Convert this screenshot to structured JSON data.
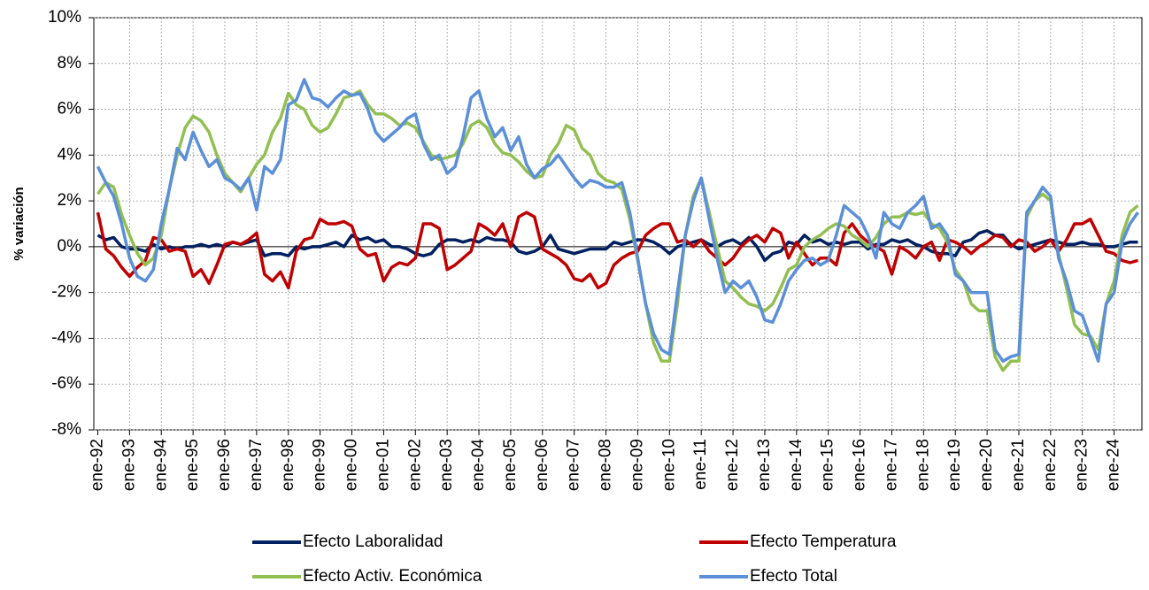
{
  "chart_data": {
    "type": "line",
    "y_label": "% variación",
    "categories": [
      "ene-92",
      null,
      null,
      null,
      "ene-93",
      null,
      null,
      null,
      "ene-94",
      null,
      null,
      null,
      "ene-95",
      null,
      null,
      null,
      "ene-96",
      null,
      null,
      null,
      "ene-97",
      null,
      null,
      null,
      "ene-98",
      null,
      null,
      null,
      "ene-99",
      null,
      null,
      null,
      "ene-00",
      null,
      null,
      null,
      "ene-01",
      null,
      null,
      null,
      "ene-02",
      null,
      null,
      null,
      "ene-03",
      null,
      null,
      null,
      "ene-04",
      null,
      null,
      null,
      "ene-05",
      null,
      null,
      null,
      "ene-06",
      null,
      null,
      null,
      "ene-07",
      null,
      null,
      null,
      "ene-08",
      null,
      null,
      null,
      "ene-09",
      null,
      null,
      null,
      "ene-10",
      null,
      null,
      null,
      "ene-11",
      null,
      null,
      null,
      "ene-12",
      null,
      null,
      null,
      "ene-13",
      null,
      null,
      null,
      "ene-14",
      null,
      null,
      null,
      "ene-15",
      null,
      null,
      null,
      "ene-16",
      null,
      null,
      null,
      "ene-17",
      null,
      null,
      null,
      "ene-18",
      null,
      null,
      null,
      "ene-19",
      null,
      null,
      null,
      "ene-20",
      null,
      null,
      null,
      "ene-21",
      null,
      null,
      null,
      "ene-22",
      null,
      null,
      null,
      "ene-23",
      null,
      null,
      null,
      "ene-24",
      null,
      null,
      null
    ],
    "series": [
      {
        "name": "Efecto Laboralidad",
        "color": "#002060",
        "values": [
          0.5,
          0.3,
          0.4,
          0.0,
          -0.1,
          -0.1,
          -0.2,
          0.1,
          -0.1,
          0.0,
          -0.1,
          0.0,
          0.0,
          0.1,
          0.0,
          0.1,
          0.0,
          0.2,
          0.1,
          0.2,
          0.3,
          -0.4,
          -0.3,
          -0.3,
          -0.4,
          0.0,
          -0.1,
          0.0,
          0.0,
          0.1,
          0.2,
          0.0,
          0.5,
          0.3,
          0.4,
          0.2,
          0.3,
          0.0,
          0.0,
          -0.1,
          -0.3,
          -0.4,
          -0.3,
          0.1,
          0.3,
          0.3,
          0.2,
          0.3,
          0.2,
          0.4,
          0.3,
          0.3,
          0.2,
          -0.2,
          -0.3,
          -0.2,
          0.0,
          0.5,
          -0.1,
          -0.2,
          -0.3,
          -0.2,
          -0.1,
          -0.1,
          -0.1,
          0.2,
          0.1,
          0.2,
          0.3,
          0.3,
          0.2,
          0.0,
          -0.3,
          0.0,
          0.1,
          0.2,
          0.3,
          0.1,
          0.0,
          0.2,
          0.3,
          0.1,
          0.4,
          0.0,
          -0.6,
          -0.3,
          -0.2,
          0.2,
          0.1,
          0.5,
          0.2,
          0.3,
          0.1,
          0.2,
          0.1,
          0.2,
          0.2,
          -0.1,
          0.1,
          0.1,
          0.3,
          0.2,
          0.3,
          0.1,
          0.0,
          -0.2,
          -0.3,
          -0.3,
          -0.4,
          0.2,
          0.3,
          0.6,
          0.7,
          0.5,
          0.5,
          0.1,
          -0.1,
          0.0,
          0.1,
          0.2,
          0.3,
          0.2,
          0.1,
          0.1,
          0.2,
          0.1,
          0.1,
          0.0,
          0.0,
          0.1,
          0.2,
          0.2
        ]
      },
      {
        "name": "Efecto Temperatura",
        "color": "#c00000",
        "values": [
          1.5,
          -0.1,
          -0.4,
          -0.9,
          -1.3,
          -0.9,
          -0.6,
          0.4,
          0.3,
          -0.2,
          -0.1,
          -0.2,
          -1.3,
          -1.0,
          -1.6,
          -0.8,
          0.1,
          0.2,
          0.1,
          0.3,
          0.6,
          -1.2,
          -1.5,
          -1.1,
          -1.8,
          -0.2,
          0.3,
          0.4,
          1.2,
          1.0,
          1.0,
          1.1,
          0.9,
          -0.1,
          -0.4,
          -0.3,
          -1.5,
          -0.9,
          -0.7,
          -0.8,
          -0.5,
          1.0,
          1.0,
          0.8,
          -1.0,
          -0.8,
          -0.5,
          -0.2,
          1.0,
          0.8,
          0.5,
          1.0,
          0.0,
          1.3,
          1.5,
          1.3,
          -0.1,
          -0.3,
          -0.5,
          -0.8,
          -1.4,
          -1.5,
          -1.2,
          -1.8,
          -1.6,
          -0.8,
          -0.5,
          -0.3,
          -0.2,
          0.5,
          0.8,
          1.0,
          1.0,
          0.2,
          0.3,
          0.0,
          0.3,
          -0.2,
          -0.5,
          -0.8,
          -0.5,
          0.0,
          0.3,
          0.5,
          0.2,
          0.8,
          0.6,
          -0.5,
          0.2,
          -0.3,
          -0.8,
          -0.5,
          -0.5,
          -0.8,
          0.6,
          1.0,
          0.5,
          0.2,
          0.0,
          -0.2,
          -1.2,
          0.0,
          -0.2,
          -0.5,
          0.0,
          0.2,
          -0.6,
          0.3,
          0.2,
          0.0,
          -0.3,
          0.0,
          0.2,
          0.5,
          0.4,
          0.0,
          0.3,
          0.2,
          -0.2,
          0.0,
          0.3,
          -0.2,
          0.3,
          1.0,
          1.0,
          1.2,
          0.5,
          -0.2,
          -0.3,
          -0.6,
          -0.7,
          -0.6
        ]
      },
      {
        "name": "Efecto Activ. Económica",
        "color": "#92bf52",
        "values": [
          2.3,
          2.8,
          2.6,
          1.4,
          0.5,
          -0.3,
          -0.8,
          -0.5,
          0.5,
          2.5,
          4.0,
          5.2,
          5.7,
          5.5,
          5.0,
          4.0,
          3.2,
          2.8,
          2.4,
          3.0,
          3.6,
          4.0,
          5.0,
          5.6,
          6.7,
          6.2,
          6.0,
          5.3,
          5.0,
          5.2,
          5.8,
          6.5,
          6.6,
          6.8,
          6.2,
          5.8,
          5.8,
          5.6,
          5.3,
          5.4,
          5.2,
          4.6,
          4.0,
          3.8,
          3.9,
          4.0,
          4.5,
          5.3,
          5.5,
          5.2,
          4.5,
          4.1,
          4.0,
          3.7,
          3.3,
          3.0,
          3.1,
          4.0,
          4.5,
          5.3,
          5.1,
          4.3,
          4.0,
          3.2,
          2.9,
          2.8,
          2.5,
          1.2,
          -0.6,
          -2.5,
          -4.2,
          -5.0,
          -5.0,
          -2.5,
          0.5,
          2.2,
          3.0,
          1.5,
          0.0,
          -1.5,
          -1.8,
          -2.2,
          -2.5,
          -2.6,
          -2.8,
          -2.5,
          -1.8,
          -1.0,
          -0.8,
          0.0,
          0.3,
          0.5,
          0.8,
          1.0,
          0.9,
          0.5,
          0.3,
          0.0,
          0.4,
          1.0,
          1.3,
          1.3,
          1.5,
          1.4,
          1.5,
          1.0,
          0.8,
          0.2,
          -1.0,
          -1.5,
          -2.5,
          -2.8,
          -2.8,
          -4.8,
          -5.4,
          -5.0,
          -5.0,
          1.3,
          2.0,
          2.3,
          2.0,
          -0.3,
          -1.8,
          -3.4,
          -3.8,
          -3.9,
          -4.5,
          -2.5,
          -1.5,
          0.5,
          1.5,
          1.8
        ]
      },
      {
        "name": "Efecto Total",
        "color": "#5b8fd8",
        "values": [
          3.5,
          2.8,
          2.2,
          1.0,
          -0.5,
          -1.3,
          -1.5,
          -1.0,
          1.0,
          2.5,
          4.3,
          3.8,
          5.0,
          4.2,
          3.5,
          3.8,
          3.0,
          2.8,
          2.5,
          3.0,
          1.6,
          3.5,
          3.2,
          3.8,
          6.2,
          6.4,
          7.3,
          6.5,
          6.4,
          6.1,
          6.5,
          6.8,
          6.6,
          6.7,
          6.0,
          5.0,
          4.6,
          4.9,
          5.2,
          5.6,
          5.8,
          4.5,
          3.8,
          4.0,
          3.2,
          3.5,
          4.8,
          6.5,
          6.8,
          5.6,
          4.8,
          5.2,
          4.2,
          4.8,
          3.6,
          3.0,
          3.4,
          3.6,
          4.0,
          3.5,
          3.0,
          2.6,
          2.9,
          2.8,
          2.6,
          2.6,
          2.8,
          1.5,
          -0.5,
          -2.5,
          -3.8,
          -4.5,
          -4.7,
          -2.0,
          0.5,
          2.0,
          3.0,
          1.2,
          -0.5,
          -2.0,
          -1.5,
          -1.8,
          -1.5,
          -2.2,
          -3.2,
          -3.3,
          -2.5,
          -1.5,
          -1.0,
          -0.6,
          -0.5,
          -0.8,
          -0.6,
          0.5,
          1.8,
          1.5,
          1.2,
          0.5,
          -0.5,
          1.5,
          1.0,
          0.8,
          1.5,
          1.8,
          2.2,
          0.8,
          1.0,
          0.5,
          -1.2,
          -1.5,
          -2.0,
          -2.0,
          -2.0,
          -4.5,
          -5.0,
          -4.8,
          -4.7,
          1.5,
          2.0,
          2.6,
          2.2,
          -0.5,
          -1.5,
          -2.8,
          -3.0,
          -4.0,
          -5.0,
          -2.5,
          -2.0,
          0.2,
          1.0,
          1.5
        ]
      }
    ],
    "ylim": [
      -8,
      10
    ],
    "yticks": [
      {
        "value": -8,
        "label": "-8%"
      },
      {
        "value": -6,
        "label": "-6%"
      },
      {
        "value": -4,
        "label": "-4%"
      },
      {
        "value": -2,
        "label": "-2%"
      },
      {
        "value": 0,
        "label": "0%"
      },
      {
        "value": 2,
        "label": "2%"
      },
      {
        "value": 4,
        "label": "4%"
      },
      {
        "value": 6,
        "label": "6%"
      },
      {
        "value": 8,
        "label": "8%"
      },
      {
        "value": 10,
        "label": "10%"
      }
    ],
    "grid": true,
    "legend": "bottom"
  }
}
